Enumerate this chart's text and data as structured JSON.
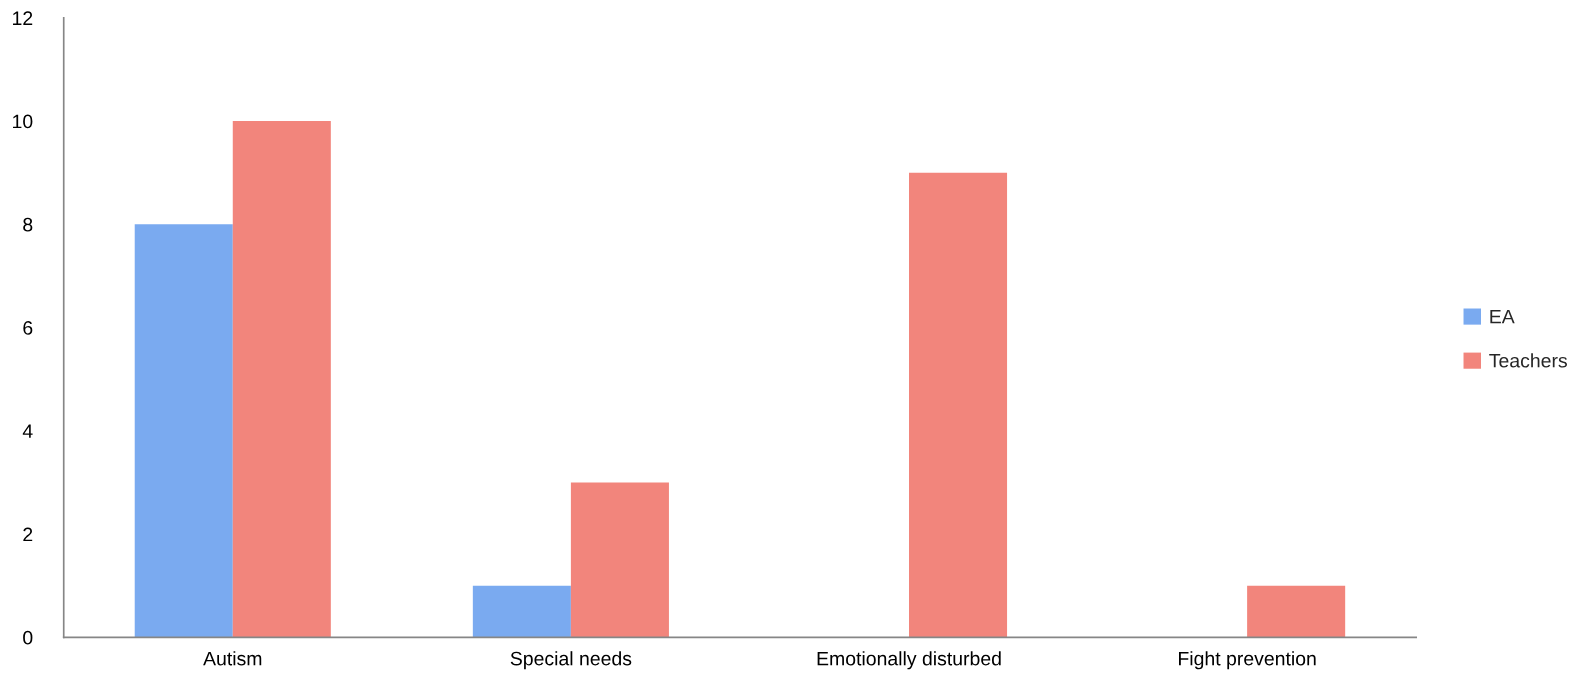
{
  "chart_data": {
    "type": "bar",
    "categories": [
      "Autism",
      "Special needs",
      "Emotionally disturbed",
      "Fight prevention"
    ],
    "series": [
      {
        "name": "EA",
        "color": "#7aaaf0",
        "values": [
          8,
          1,
          null,
          null
        ]
      },
      {
        "name": "Teachers",
        "color": "#f2857c",
        "values": [
          10,
          3,
          9,
          1
        ]
      }
    ],
    "ylim": [
      0,
      12
    ],
    "yticks": [
      0,
      2,
      4,
      6,
      8,
      10,
      12
    ],
    "grid": false,
    "legend": "right"
  }
}
